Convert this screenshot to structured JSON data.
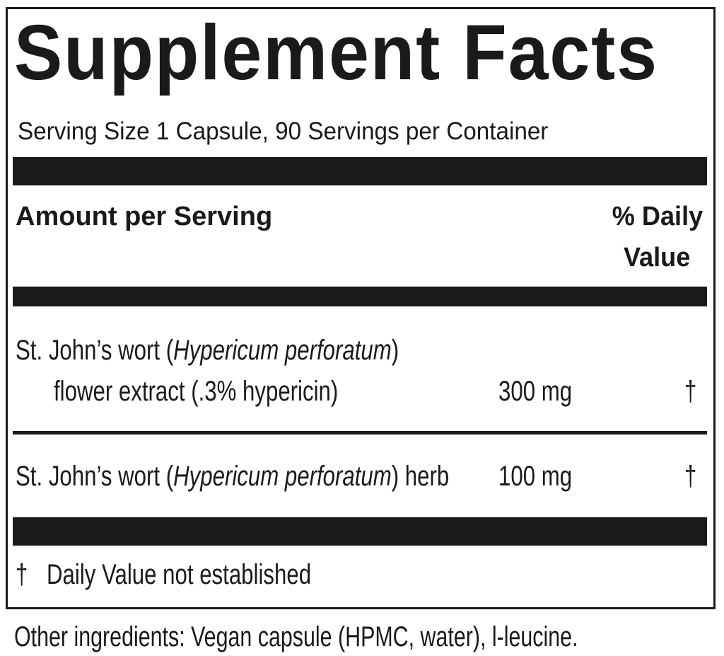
{
  "title": "Supplement Facts",
  "serving": "Serving Size 1 Capsule, 90 Servings per Container",
  "header": {
    "amount": "Amount per Serving",
    "dv_line1": "% Daily",
    "dv_line2": "Value"
  },
  "rows": [
    {
      "name_prefix": "St. John’s wort (",
      "name_italic": "Hypericum perforatum",
      "name_suffix": ")",
      "line2": "flower extract (.3% hypericin)",
      "amount": "300 mg",
      "dv": "†"
    },
    {
      "name_prefix": "St. John’s wort (",
      "name_italic": "Hypericum perforatum",
      "name_suffix": ") herb",
      "amount": "100 mg",
      "dv": "†"
    }
  ],
  "footnote": {
    "symbol": "†",
    "text": "Daily Value not established"
  },
  "other_ingredients": "Other ingredients: Vegan capsule (HPMC, water), l-leucine."
}
